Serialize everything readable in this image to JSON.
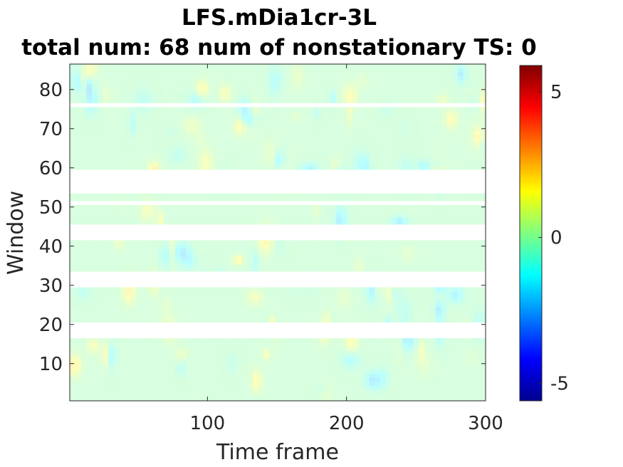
{
  "chart_data": {
    "type": "heatmap",
    "title": "LFS.mDia1cr-3L",
    "subtitle": "total num: 68 num of nonstationary TS: 0",
    "xlabel": "Time frame",
    "ylabel": "Window",
    "xlim": [
      1,
      300
    ],
    "ylim": [
      1,
      86
    ],
    "xticks": [
      100,
      200,
      300
    ],
    "yticks": [
      10,
      20,
      30,
      40,
      50,
      60,
      70,
      80
    ],
    "colorbar": {
      "colormap": "jet",
      "clim": [
        -5.6,
        5.9
      ],
      "ticks": [
        -5,
        0,
        5
      ]
    },
    "value_range_observed": [
      -2.5,
      2.5
    ],
    "missing_windows": [
      [
        17,
        20
      ],
      [
        30,
        33
      ],
      [
        42,
        45
      ],
      [
        51,
        51
      ],
      [
        54,
        59
      ],
      [
        76,
        76
      ]
    ],
    "grid": false
  },
  "colors": {
    "background": "#ffffff",
    "axis": "#262626",
    "text": "#000000"
  }
}
